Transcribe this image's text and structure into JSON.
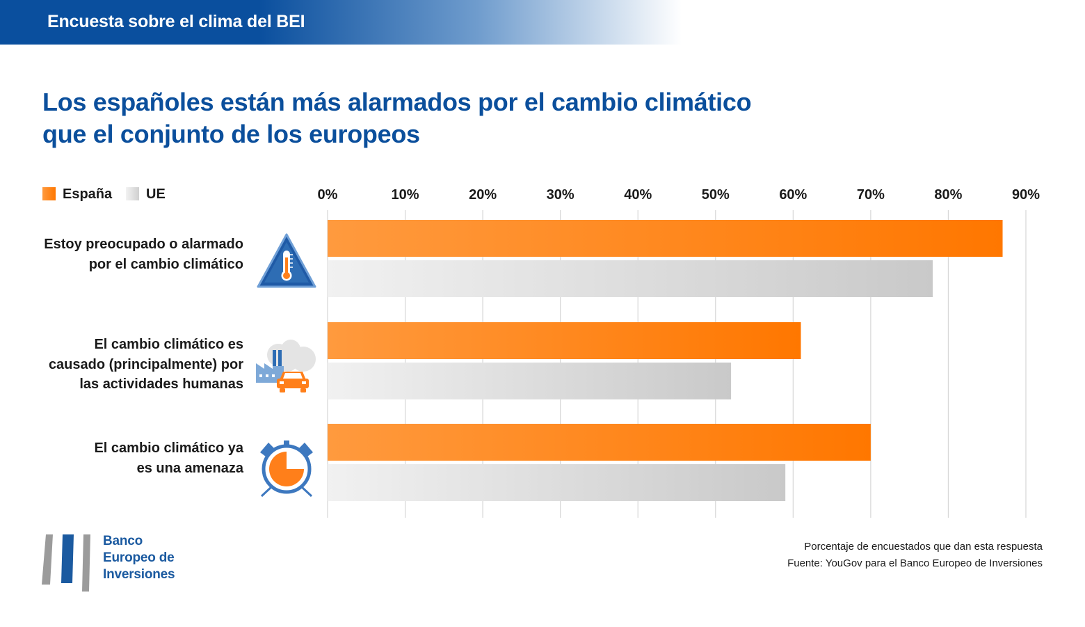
{
  "banner": {
    "title": "Encuesta sobre el clima del BEI"
  },
  "headline": {
    "line1": "Los españoles están más alarmados por el cambio climático",
    "line2": "que el conjunto de los europeos"
  },
  "colors": {
    "banner": "#0a4f9e",
    "headline": "#0b4f9c",
    "spain_bar_start": "#ff9a3e",
    "spain_bar_end": "#ff7700",
    "eu_bar_start": "#f1f1f1",
    "eu_bar_end": "#c9c9c9",
    "icon_blue": "#2e6db4",
    "icon_orange": "#ff7f1a",
    "gridline": "#d6d6d6"
  },
  "categories_meta": [
    {
      "lines": [
        "Estoy preocupado o alarmado",
        "por el cambio climático"
      ],
      "icon": "thermometer-warning-icon"
    },
    {
      "lines": [
        "El cambio climático es",
        "causado (principalmente) por",
        "las actividades humanas"
      ],
      "icon": "factory-car-pollution-icon"
    },
    {
      "lines": [
        "El cambio climático ya",
        "es una amenaza"
      ],
      "icon": "alarm-clock-icon"
    }
  ],
  "chart_data": {
    "type": "bar",
    "orientation": "horizontal",
    "categories": [
      "Estoy preocupado o alarmado por el cambio climático",
      "El cambio climático es causado (principalmente) por las actividades humanas",
      "El cambio climático ya es una amenaza"
    ],
    "series": [
      {
        "name": "España",
        "values": [
          87,
          61,
          70
        ]
      },
      {
        "name": "UE",
        "values": [
          78,
          52,
          59
        ]
      }
    ],
    "xlim": [
      0,
      90
    ],
    "ticks": [
      0,
      10,
      20,
      30,
      40,
      50,
      60,
      70,
      80,
      90
    ],
    "tick_labels": [
      "0%",
      "10%",
      "20%",
      "30%",
      "40%",
      "50%",
      "60%",
      "70%",
      "80%",
      "90%"
    ],
    "tick_position": "top",
    "grid": true,
    "legend": "top-left"
  },
  "logo": {
    "line1": "Banco",
    "line2": "Europeo de",
    "line3": "Inversiones"
  },
  "footnote": {
    "line1": "Porcentaje de encuestados que dan esta respuesta",
    "line2": "Fuente: YouGov para el Banco Europeo de Inversiones"
  }
}
